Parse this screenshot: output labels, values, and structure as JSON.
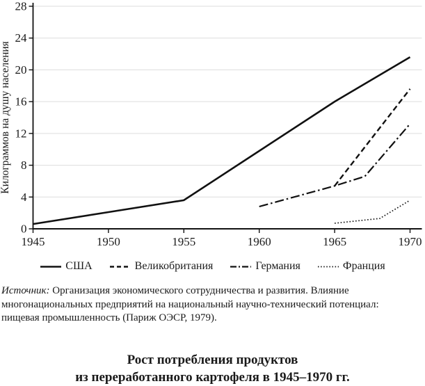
{
  "chart_data": {
    "type": "line",
    "title": "Рост потребления продуктов из переработанного картофеля в 1945–1970 гг.",
    "xlabel": "",
    "ylabel": "Килограммов на душу населения",
    "xlim": [
      1945,
      1970
    ],
    "ylim": [
      0,
      28
    ],
    "xticks": [
      1945,
      1950,
      1955,
      1960,
      1965,
      1970
    ],
    "yticks": [
      0,
      4,
      8,
      12,
      16,
      20,
      24,
      28
    ],
    "grid": "horizontal-light",
    "legend_position": "bottom",
    "colors": {
      "line": "#111111",
      "axis": "#111111",
      "grid": "#dddddd"
    },
    "series": [
      {
        "name": "США",
        "style": "solid",
        "points": [
          [
            1945,
            0.6
          ],
          [
            1950,
            2.1
          ],
          [
            1955,
            3.6
          ],
          [
            1960,
            9.8
          ],
          [
            1965,
            16.0
          ],
          [
            1970,
            21.6
          ]
        ]
      },
      {
        "name": "Великобритания",
        "style": "dashed",
        "points": [
          [
            1965,
            5.4
          ],
          [
            1970,
            17.6
          ]
        ]
      },
      {
        "name": "Германия",
        "style": "dashdot",
        "points": [
          [
            1960,
            2.8
          ],
          [
            1965,
            5.4
          ],
          [
            1967,
            6.6
          ],
          [
            1970,
            13.2
          ]
        ]
      },
      {
        "name": "Франция",
        "style": "dotted",
        "points": [
          [
            1965,
            0.7
          ],
          [
            1968,
            1.3
          ],
          [
            1970,
            3.6
          ]
        ]
      }
    ]
  },
  "source": {
    "label": "Источник:",
    "line1_rest": "Организация экономического сотрудничества и развития. Влияние",
    "line2": "многонациональных предприятий на национальный научно-технический потенциал:",
    "line3": "пищевая промышленность (Париж ОЭСР, 1979)."
  },
  "caption": {
    "line1": "Рост потребления продуктов",
    "line2": "из переработанного картофеля в 1945–1970 гг."
  }
}
